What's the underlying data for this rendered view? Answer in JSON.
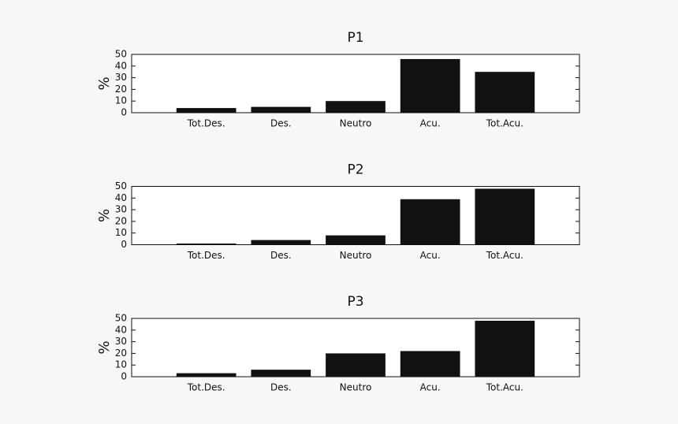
{
  "chart_data": [
    {
      "type": "bar",
      "title": "P1",
      "y_label": "%",
      "categories": [
        "Tot.Des.",
        "Des.",
        "Neutro",
        "Acu.",
        "Tot.Acu."
      ],
      "values": [
        4,
        5,
        10,
        46,
        35
      ],
      "color": "#111111",
      "ylim": [
        0,
        50
      ],
      "yticks": [
        0,
        10,
        20,
        30,
        40,
        50
      ]
    },
    {
      "type": "bar",
      "title": "P2",
      "y_label": "%",
      "categories": [
        "Tot.Des.",
        "Des.",
        "Neutro",
        "Acu.",
        "Tot.Acu."
      ],
      "values": [
        1,
        4,
        8,
        39,
        48
      ],
      "color": "#111111",
      "ylim": [
        0,
        50
      ],
      "yticks": [
        0,
        10,
        20,
        30,
        40,
        50
      ]
    },
    {
      "type": "bar",
      "title": "P3",
      "y_label": "%",
      "categories": [
        "Tot.Des.",
        "Des.",
        "Neutro",
        "Acu.",
        "Tot.Acu."
      ],
      "values": [
        3,
        6,
        20,
        22,
        48
      ],
      "color": "#111111",
      "ylim": [
        0,
        50
      ],
      "yticks": [
        0,
        10,
        20,
        30,
        40,
        50
      ]
    }
  ]
}
